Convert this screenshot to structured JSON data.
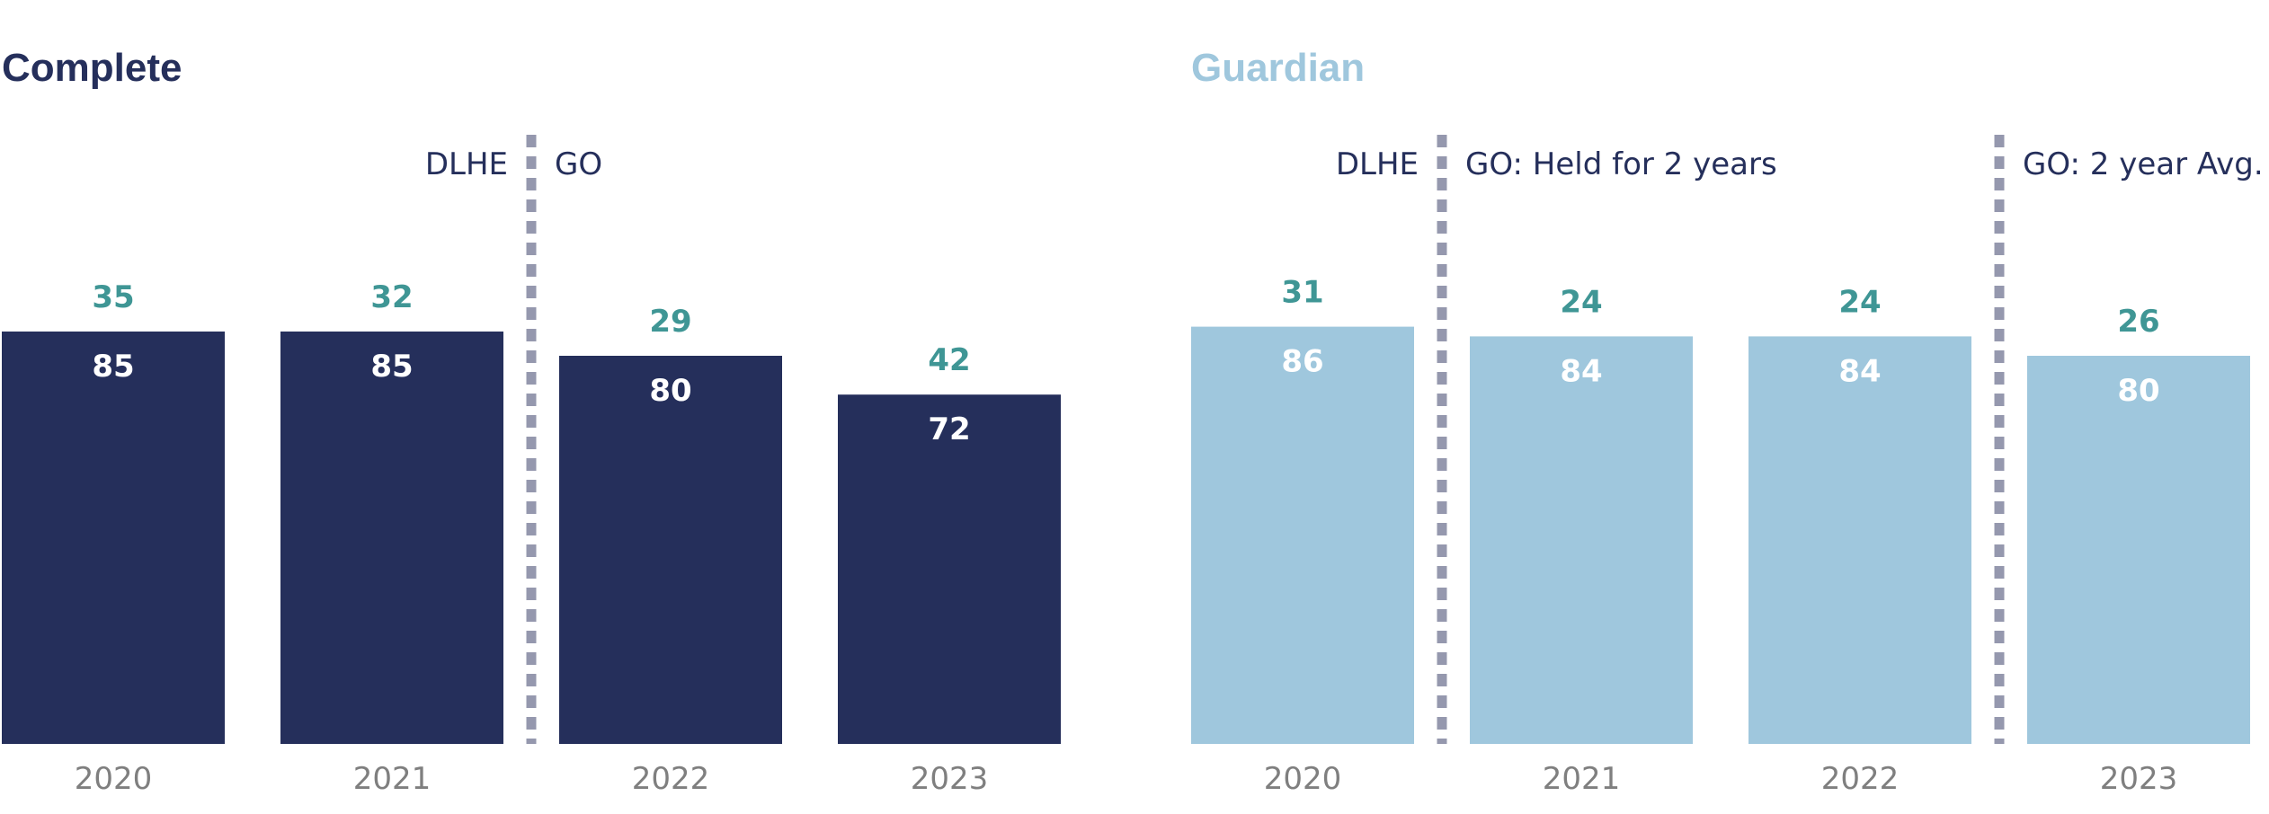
{
  "colors": {
    "complete_bar": "#252f5b",
    "guardian_bar": "#9fc7dd",
    "top_label": "#3f9695",
    "inner_label": "#ffffff",
    "divider": "#9598ae",
    "tick": "#7f7f7f",
    "era_text": "#252f5b"
  },
  "chart_data": [
    {
      "type": "bar",
      "title": "Complete",
      "categories": [
        "2020",
        "2021",
        "2022",
        "2023"
      ],
      "series": [
        {
          "values": [
            85,
            85,
            80,
            72
          ]
        },
        {
          "values": [
            35,
            32,
            29,
            42
          ]
        }
      ],
      "ylim": [
        0,
        100
      ],
      "grid": false,
      "dividers_after_index": [
        1
      ],
      "era_labels": [
        {
          "text": "DLHE",
          "after_index": 1,
          "side": "left"
        },
        {
          "text": "GO",
          "after_index": 1,
          "side": "right"
        }
      ]
    },
    {
      "type": "bar",
      "title": "Guardian",
      "categories": [
        "2020",
        "2021",
        "2022",
        "2023"
      ],
      "series": [
        {
          "values": [
            86,
            84,
            84,
            80
          ]
        },
        {
          "values": [
            31,
            24,
            24,
            26
          ]
        }
      ],
      "ylim": [
        0,
        100
      ],
      "grid": false,
      "dividers_after_index": [
        0,
        2
      ],
      "era_labels": [
        {
          "text": "DLHE",
          "after_index": 0,
          "side": "left"
        },
        {
          "text": "GO: Held for 2 years",
          "after_index": 0,
          "side": "right"
        },
        {
          "text": "GO: 2 year Avg.",
          "after_index": 2,
          "side": "right"
        }
      ]
    }
  ]
}
